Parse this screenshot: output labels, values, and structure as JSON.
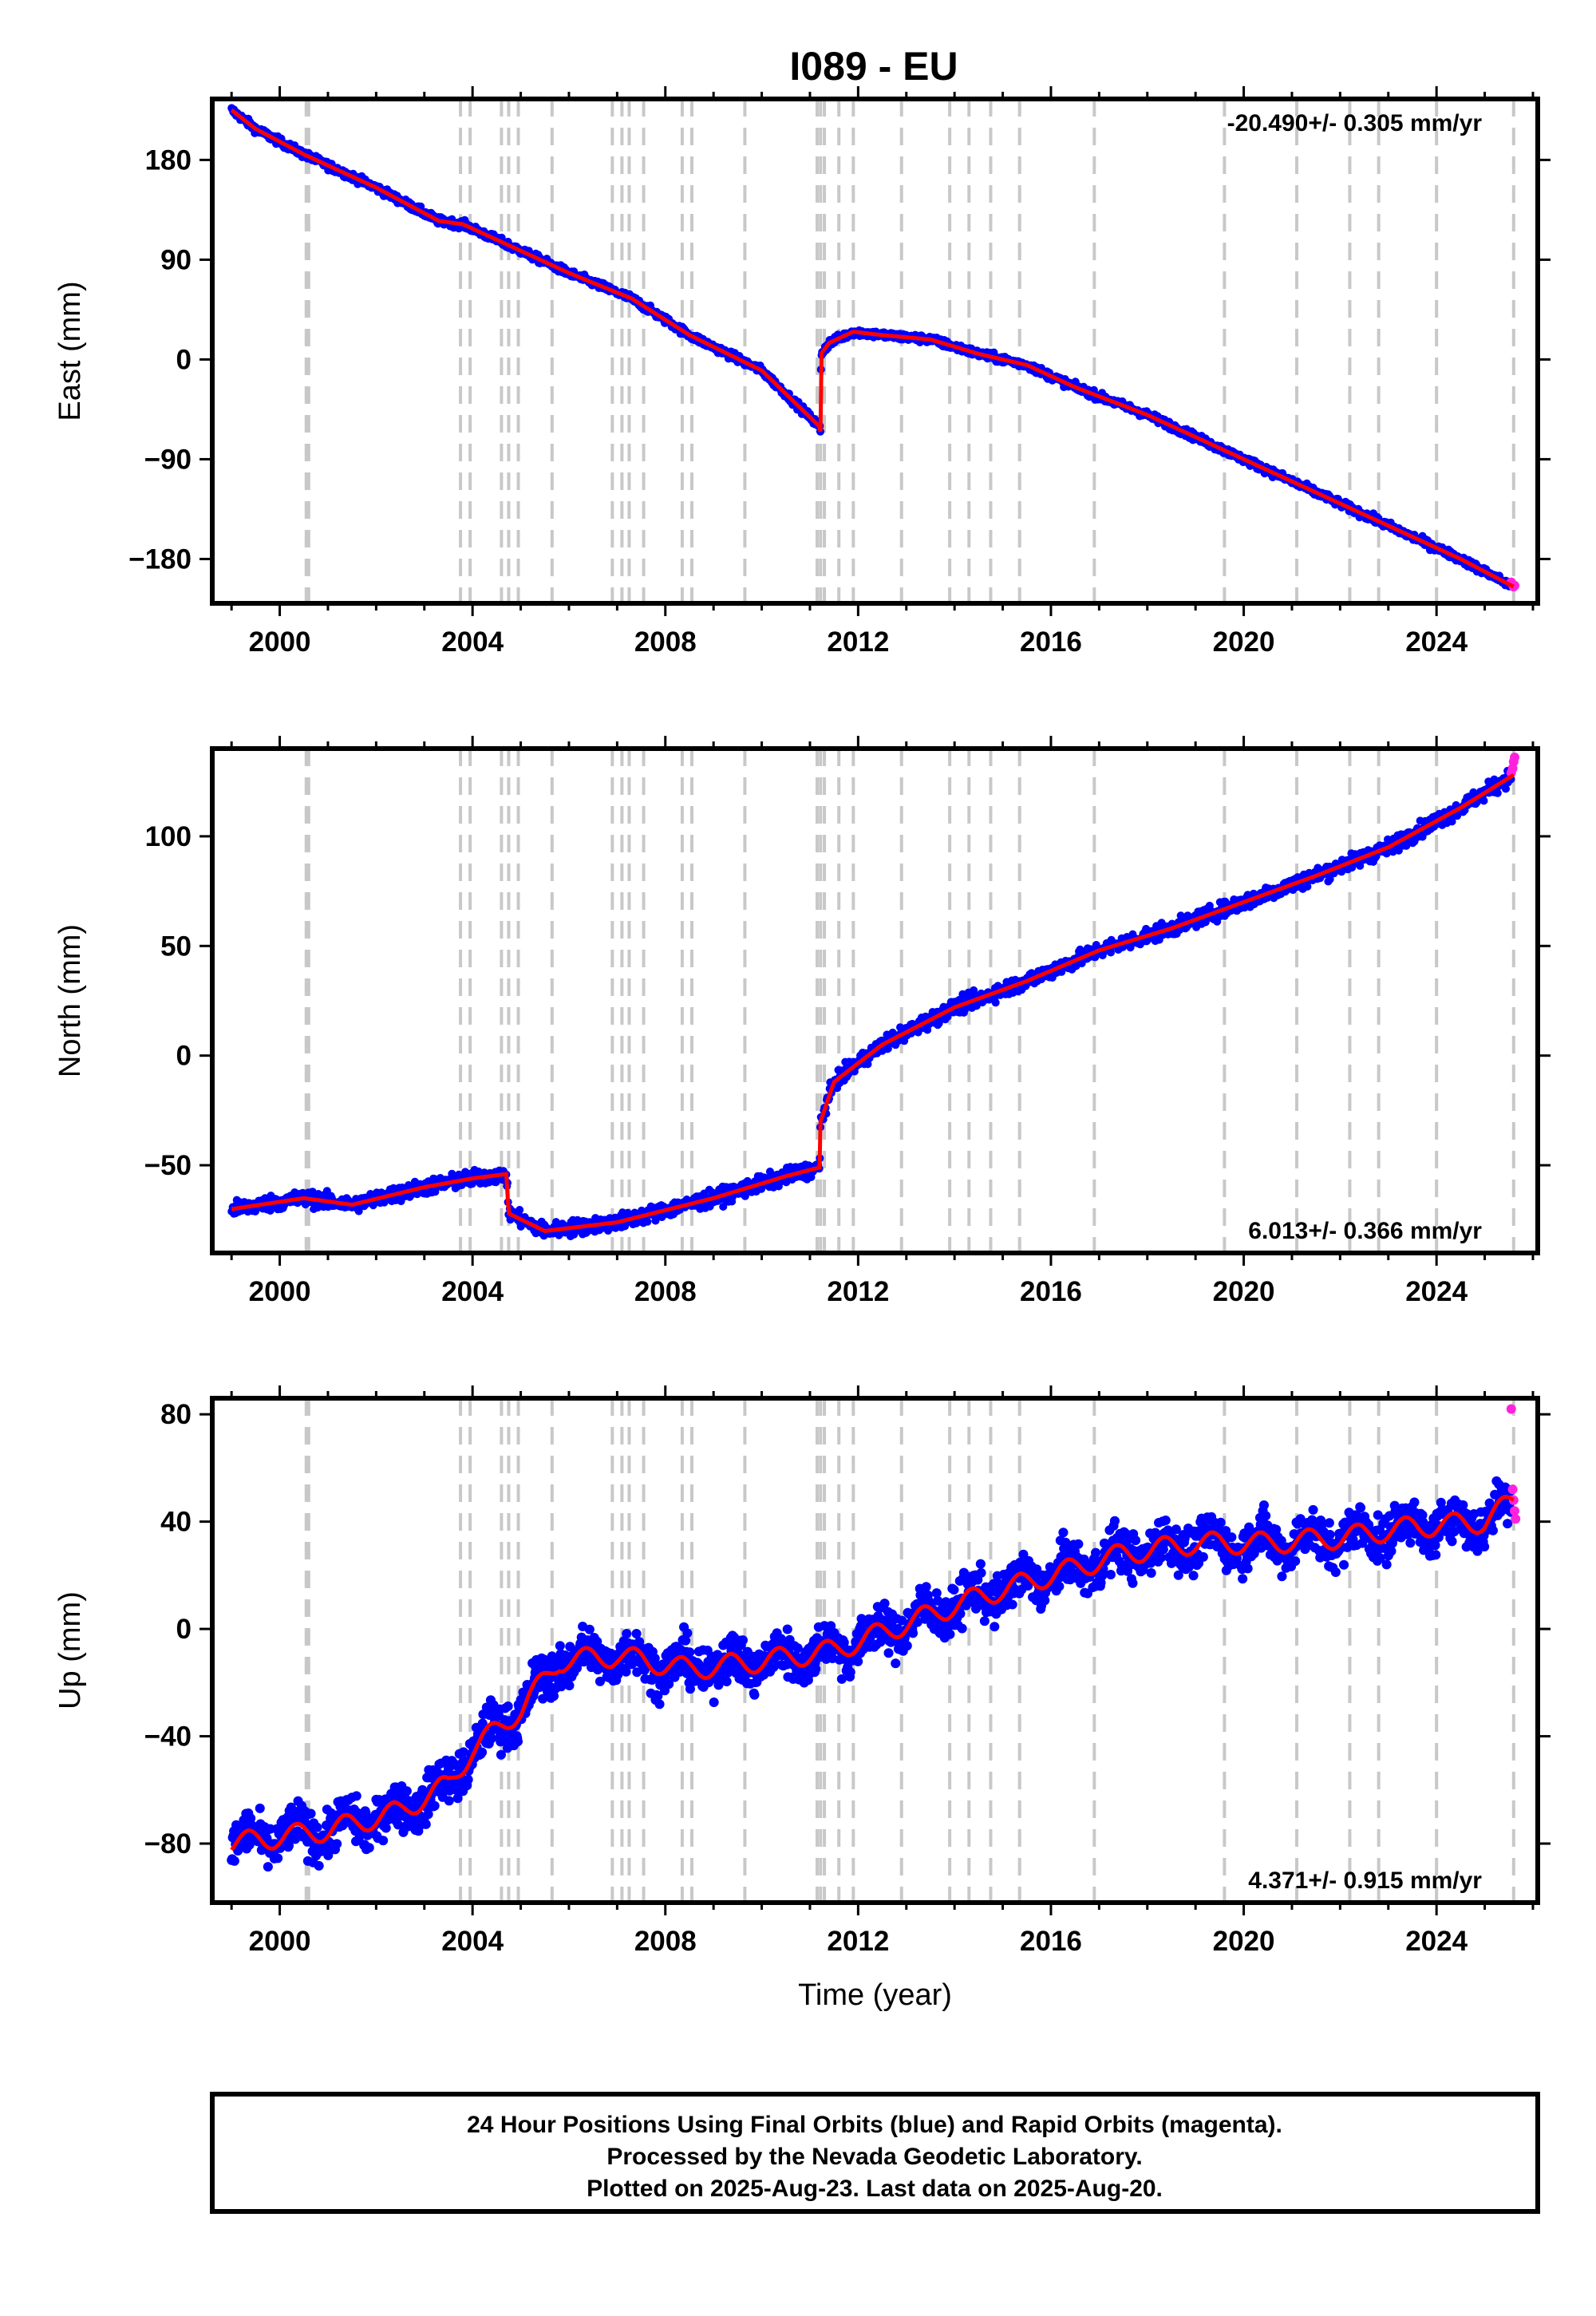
{
  "title": "I089 - EU",
  "footer": {
    "line1": "24 Hour Positions Using Final Orbits (blue) and Rapid Orbits (magenta).",
    "line2": "Processed by the Nevada Geodetic Laboratory.",
    "line3": "Plotted on 2025-Aug-23. Last data on 2025-Aug-20."
  },
  "colors": {
    "final": "#0000ff",
    "rapid": "#ff22dd",
    "model": "#ff0000",
    "event": "#c8c8c8"
  },
  "chart_data": [
    {
      "type": "scatter",
      "component": "east",
      "ylabel": "East (mm)",
      "xlabel": "",
      "xlim": [
        1998.6,
        2026.1
      ],
      "ylim": [
        -220,
        235
      ],
      "yticks": [
        -180,
        -90,
        0,
        90,
        180
      ],
      "xticks": [
        2000,
        2004,
        2008,
        2012,
        2016,
        2020,
        2024
      ],
      "rate_text": "-20.490+/- 0.305 mm/yr",
      "rate_position": "top-right",
      "noise_mm": 2.5,
      "knots": [
        [
          1999.0,
          225
        ],
        [
          1999.5,
          208
        ],
        [
          2000.5,
          185
        ],
        [
          2002.0,
          155
        ],
        [
          2003.3,
          125
        ],
        [
          2003.8,
          122
        ],
        [
          2004.5,
          108
        ],
        [
          2006.0,
          78
        ],
        [
          2007.3,
          55
        ],
        [
          2008.5,
          22
        ],
        [
          2010.0,
          -10
        ],
        [
          2011.19,
          -60
        ],
        [
          2011.22,
          -65
        ],
        [
          2011.23,
          5
        ],
        [
          2011.4,
          15
        ],
        [
          2011.9,
          25
        ],
        [
          2012.5,
          22
        ],
        [
          2013.5,
          18
        ],
        [
          2014.5,
          5
        ],
        [
          2015.5,
          -5
        ],
        [
          2016.5,
          -25
        ],
        [
          2018.0,
          -50
        ],
        [
          2020.0,
          -90
        ],
        [
          2021.5,
          -120
        ],
        [
          2023.0,
          -150
        ],
        [
          2024.5,
          -180
        ],
        [
          2025.6,
          -205
        ]
      ],
      "rapid": [
        [
          2025.55,
          -201
        ],
        [
          2025.58,
          -203
        ],
        [
          2025.6,
          -205
        ],
        [
          2025.62,
          -204
        ]
      ]
    },
    {
      "type": "scatter",
      "component": "north",
      "ylabel": "North (mm)",
      "xlabel": "",
      "xlim": [
        1998.6,
        2026.1
      ],
      "ylim": [
        -90,
        140
      ],
      "yticks": [
        -50,
        0,
        50,
        100
      ],
      "xticks": [
        2000,
        2004,
        2008,
        2012,
        2016,
        2020,
        2024
      ],
      "rate_text": "6.013+/- 0.366 mm/yr",
      "rate_position": "bottom-right",
      "noise_mm": 2.5,
      "knots": [
        [
          1999.0,
          -70
        ],
        [
          2000.5,
          -65
        ],
        [
          2001.5,
          -68
        ],
        [
          2003.0,
          -60
        ],
        [
          2004.0,
          -56
        ],
        [
          2004.7,
          -54
        ],
        [
          2004.75,
          -72
        ],
        [
          2005.5,
          -80
        ],
        [
          2007.0,
          -76
        ],
        [
          2009.0,
          -65
        ],
        [
          2010.5,
          -55
        ],
        [
          2011.2,
          -51
        ],
        [
          2011.22,
          -30
        ],
        [
          2011.5,
          -12
        ],
        [
          2012.5,
          5
        ],
        [
          2014.0,
          22
        ],
        [
          2015.5,
          34
        ],
        [
          2017.0,
          48
        ],
        [
          2018.5,
          58
        ],
        [
          2020.0,
          70
        ],
        [
          2021.5,
          82
        ],
        [
          2023.0,
          95
        ],
        [
          2024.5,
          113
        ],
        [
          2025.6,
          128
        ]
      ],
      "rapid": [
        [
          2025.55,
          129
        ],
        [
          2025.58,
          131
        ],
        [
          2025.6,
          134
        ],
        [
          2025.62,
          136
        ]
      ]
    },
    {
      "type": "scatter",
      "component": "up",
      "ylabel": "Up (mm)",
      "xlabel": "Time (year)",
      "xlim": [
        1998.6,
        2026.1
      ],
      "ylim": [
        -102,
        86
      ],
      "yticks": [
        -80,
        -40,
        0,
        40,
        80
      ],
      "xticks": [
        2000,
        2004,
        2008,
        2012,
        2016,
        2020,
        2024
      ],
      "rate_text": "4.371+/- 0.915 mm/yr",
      "rate_position": "bottom-right",
      "noise_mm": 6,
      "seasonal_mm": 4,
      "knots": [
        [
          1999.0,
          -80
        ],
        [
          2001.0,
          -75
        ],
        [
          2002.5,
          -68
        ],
        [
          2003.5,
          -58
        ],
        [
          2004.0,
          -45
        ],
        [
          2005.0,
          -30
        ],
        [
          2005.8,
          -12
        ],
        [
          2007.0,
          -10
        ],
        [
          2008.5,
          -15
        ],
        [
          2010.0,
          -12
        ],
        [
          2011.5,
          -8
        ],
        [
          2013.0,
          2
        ],
        [
          2014.5,
          12
        ],
        [
          2016.0,
          20
        ],
        [
          2017.5,
          28
        ],
        [
          2019.0,
          32
        ],
        [
          2020.5,
          32
        ],
        [
          2022.0,
          34
        ],
        [
          2023.5,
          38
        ],
        [
          2025.0,
          40
        ],
        [
          2025.6,
          48
        ]
      ],
      "rapid": [
        [
          2025.55,
          82
        ],
        [
          2025.58,
          52
        ],
        [
          2025.6,
          48
        ],
        [
          2025.62,
          44
        ],
        [
          2025.64,
          41
        ]
      ]
    }
  ],
  "event_lines": [
    2000.55,
    2000.6,
    2003.75,
    2003.95,
    2004.6,
    2004.75,
    2004.95,
    2005.65,
    2006.9,
    2007.1,
    2007.25,
    2007.55,
    2008.35,
    2008.55,
    2009.65,
    2011.15,
    2011.22,
    2011.3,
    2011.6,
    2011.9,
    2012.9,
    2013.9,
    2014.3,
    2014.75,
    2015.35,
    2016.9,
    2019.6,
    2021.1,
    2022.2,
    2022.8,
    2024.0,
    2025.6
  ]
}
